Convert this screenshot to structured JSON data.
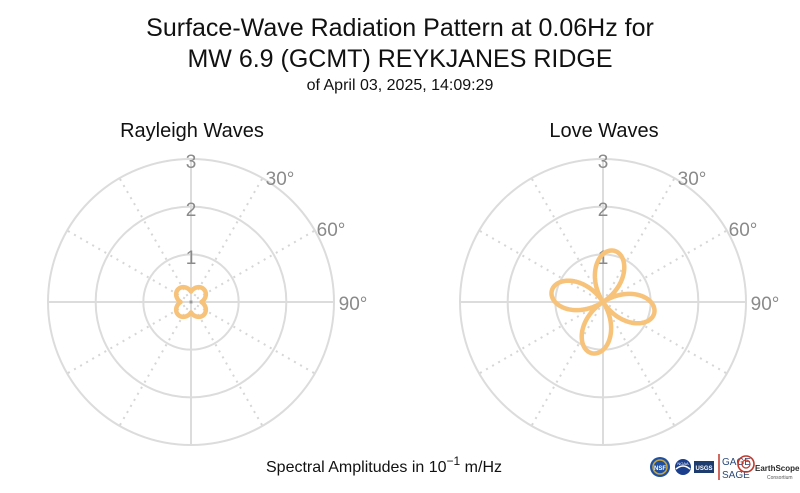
{
  "title_line1": "Surface-Wave Radiation Pattern at 0.06Hz for",
  "title_line2": "MW 6.9 (GCMT) REYKJANES RIDGE",
  "subtitle": "of April 03, 2025, 14:09:29",
  "footer_text": "Spectral Amplitudes in 10",
  "footer_exp": "−1",
  "footer_unit": " m/Hz",
  "logos": {
    "nsf": "NSF",
    "noaa": "NOAA",
    "usgs": "USGS",
    "gage": "GAGE",
    "sage": "SAGE",
    "earthscope": "EarthScope",
    "consortium": "Consortium"
  },
  "colors": {
    "pattern": "#f7c27a",
    "grid": "#dcdcdc",
    "ticks": "#8a8a8a"
  },
  "chart_data": [
    {
      "type": "polar",
      "title": "Rayleigh Waves",
      "rlim": [
        0,
        3
      ],
      "r_ticks": [
        "1",
        "2",
        "3"
      ],
      "theta_ticks": [
        "30°",
        "60°",
        "90°"
      ],
      "theta_zero": "north",
      "theta_direction": "clockwise",
      "grid": true,
      "series": [
        {
          "pattern": "four-lobe",
          "max_amplitude": 0.38,
          "min_amplitude": 0.22,
          "lobe_azimuths_deg": [
            45,
            135,
            225,
            315
          ]
        }
      ]
    },
    {
      "type": "polar",
      "title": "Love Waves",
      "rlim": [
        0,
        3
      ],
      "r_ticks": [
        "1",
        "2",
        "3"
      ],
      "theta_ticks": [
        "30°",
        "60°",
        "90°"
      ],
      "theta_zero": "north",
      "theta_direction": "clockwise",
      "grid": true,
      "series": [
        {
          "pattern": "four-lobe",
          "max_amplitude": 1.1,
          "min_amplitude": 0.0,
          "lobe_azimuths_deg": [
            12,
            102,
            192,
            282
          ]
        }
      ]
    }
  ]
}
